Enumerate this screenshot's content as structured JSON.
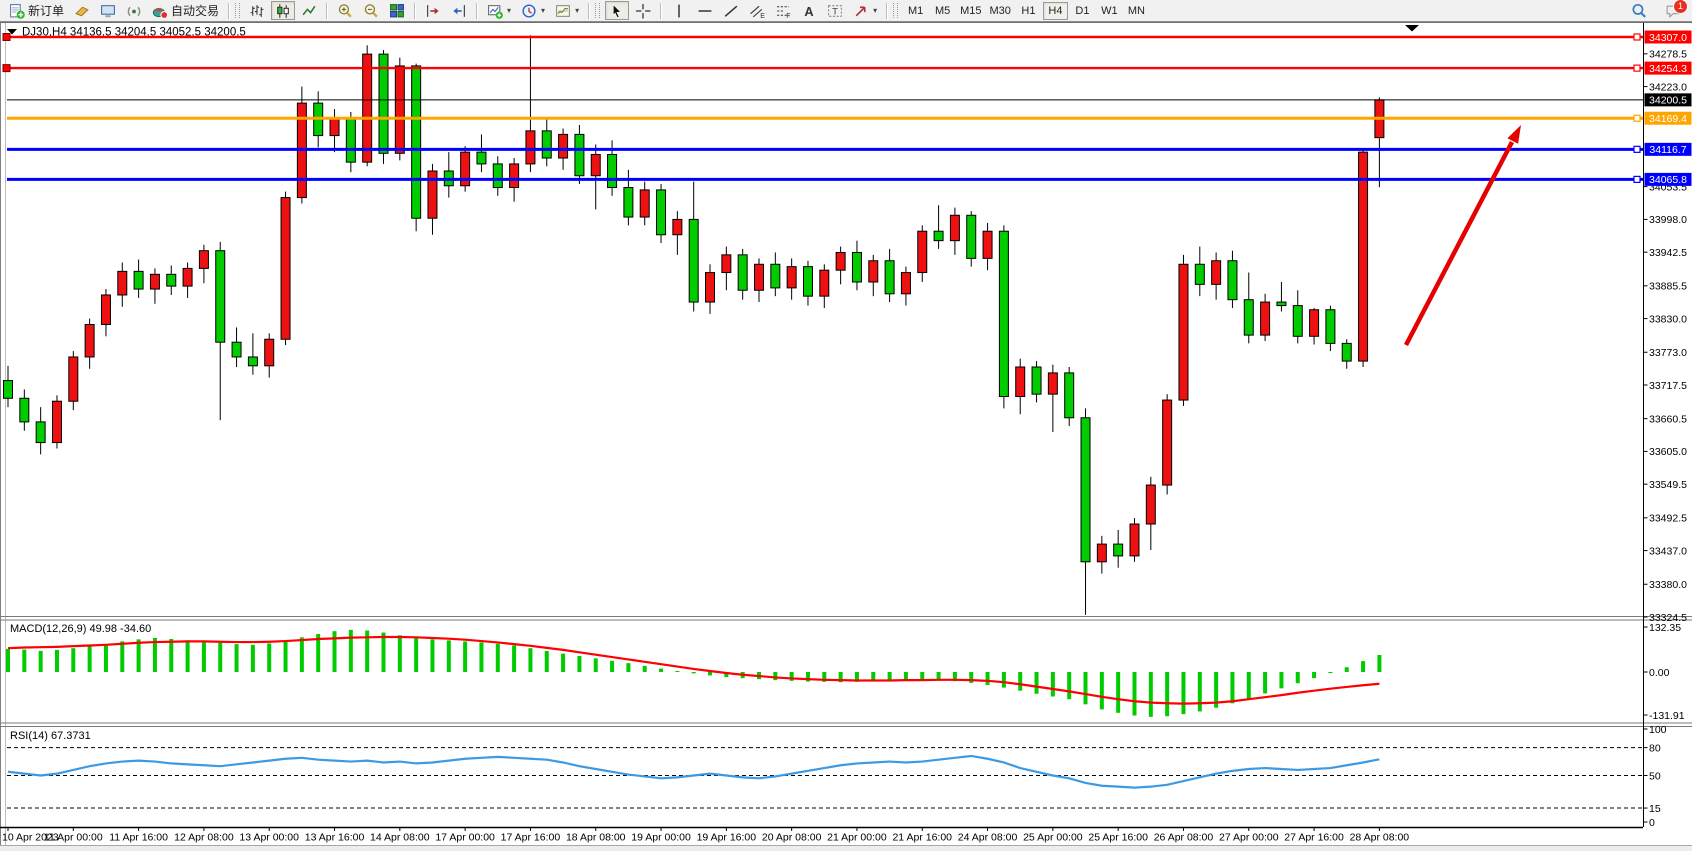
{
  "toolbar": {
    "new_order_label": "新订单",
    "auto_trading_label": "自动交易",
    "notification_badge": "1",
    "groups": [
      {
        "items": [
          {
            "name": "new-order-button",
            "icon": "new-order-icon",
            "label": "新订单"
          },
          {
            "name": "profiles-button",
            "icon": "profile-icon"
          },
          {
            "name": "terminal-button",
            "icon": "terminal-icon"
          },
          {
            "name": "signals-button",
            "icon": "signal-icon"
          },
          {
            "name": "auto-trading-button",
            "icon": "auto-trading-icon",
            "label": "自动交易"
          }
        ]
      },
      {
        "grip": true,
        "items": [
          {
            "name": "bar-chart-button",
            "icon": "bars-chart-icon"
          },
          {
            "name": "candlestick-chart-button",
            "icon": "candle-chart-icon",
            "active": true
          },
          {
            "name": "line-chart-button",
            "icon": "line-chart-icon"
          }
        ]
      },
      {
        "items": [
          {
            "name": "zoom-in-button",
            "icon": "zoom-in-icon"
          },
          {
            "name": "zoom-out-button",
            "icon": "zoom-out-icon"
          },
          {
            "name": "tile-windows-button",
            "icon": "tile-windows-icon"
          }
        ]
      },
      {
        "items": [
          {
            "name": "auto-scroll-button",
            "icon": "auto-scroll-icon"
          },
          {
            "name": "chart-shift-button",
            "icon": "chart-shift-icon"
          }
        ]
      },
      {
        "items": [
          {
            "name": "new-chart-button",
            "icon": "new-chart-icon",
            "caret": true
          },
          {
            "name": "period-button",
            "icon": "clock-icon",
            "caret": true
          },
          {
            "name": "template-button",
            "icon": "template-icon",
            "caret": true
          }
        ]
      },
      {
        "grip": true,
        "items": [
          {
            "name": "cursor-button",
            "icon": "cursor-icon",
            "active": true
          },
          {
            "name": "crosshair-button",
            "icon": "crosshair-icon"
          }
        ]
      },
      {
        "items": [
          {
            "name": "vertical-line-button",
            "icon": "vertical-line-icon"
          },
          {
            "name": "horizontal-line-button",
            "icon": "horizontal-line-icon"
          },
          {
            "name": "trendline-button",
            "icon": "trendline-icon"
          },
          {
            "name": "channel-button",
            "icon": "channel-icon"
          },
          {
            "name": "fibonacci-button",
            "icon": "fibonacci-icon"
          },
          {
            "name": "text-button",
            "icon": "text-icon"
          },
          {
            "name": "text-label-button",
            "icon": "text-label-icon"
          },
          {
            "name": "arrows-button",
            "icon": "arrow-shapes-icon",
            "caret": true
          }
        ]
      },
      {
        "grip": true,
        "type": "timeframes",
        "items": [
          {
            "name": "timeframe-M1",
            "label": "M1"
          },
          {
            "name": "timeframe-M5",
            "label": "M5"
          },
          {
            "name": "timeframe-M15",
            "label": "M15"
          },
          {
            "name": "timeframe-M30",
            "label": "M30"
          },
          {
            "name": "timeframe-H1",
            "label": "H1"
          },
          {
            "name": "timeframe-H4",
            "label": "H4",
            "active": true
          },
          {
            "name": "timeframe-D1",
            "label": "D1"
          },
          {
            "name": "timeframe-W1",
            "label": "W1"
          },
          {
            "name": "timeframe-MN",
            "label": "MN"
          }
        ]
      }
    ],
    "right_items": [
      {
        "name": "search-button",
        "icon": "search-icon"
      },
      {
        "name": "notifications-button",
        "icon": "chat-icon",
        "badge": "1"
      }
    ]
  },
  "chart": {
    "title_symbol": "DJ30,H4",
    "title_ohlc": "34136.5 34204.5 34052.5 34200.5"
  },
  "chart_data": [
    {
      "type": "candlestick",
      "symbol": "DJ30",
      "timeframe": "H4",
      "title": "DJ30,H4 34136.5 34204.5 34052.5 34200.5",
      "up_color": "#ee1111",
      "down_color": "#00cc00",
      "current_price": 34200.5,
      "ylim": [
        33324.5,
        34307.0
      ],
      "y_ticks": [
        34278.5,
        34223.0,
        34053.5,
        33998.0,
        33942.5,
        33885.5,
        33830.0,
        33773.0,
        33717.5,
        33660.5,
        33605.0,
        33549.5,
        33492.5,
        33437.0,
        33380.0,
        33324.5
      ],
      "price_lines": [
        {
          "label": "34307.0",
          "price": 34307.0,
          "color": "#ff0000",
          "width": 2.4,
          "left_handle": true
        },
        {
          "label": "34254.3",
          "price": 34254.3,
          "color": "#ff0000",
          "width": 2.4,
          "left_handle": true
        },
        {
          "label": "34200.5",
          "price": 34200.5,
          "color": "#000000",
          "width": 1,
          "current": true
        },
        {
          "label": "34169.4",
          "price": 34169.4,
          "color": "#ffa500",
          "width": 3
        },
        {
          "label": "34116.7",
          "price": 34116.7,
          "color": "#0000ff",
          "width": 3
        },
        {
          "label": "34065.8",
          "price": 34065.8,
          "color": "#0000ff",
          "width": 3
        }
      ],
      "x_labels": [
        "10 Apr 2023",
        "11 Apr 00:00",
        "11 Apr 16:00",
        "12 Apr 08:00",
        "13 Apr 00:00",
        "13 Apr 16:00",
        "14 Apr 08:00",
        "17 Apr 00:00",
        "17 Apr 16:00",
        "18 Apr 08:00",
        "19 Apr 00:00",
        "19 Apr 16:00",
        "20 Apr 08:00",
        "21 Apr 00:00",
        "21 Apr 16:00",
        "24 Apr 08:00",
        "25 Apr 00:00",
        "25 Apr 16:00",
        "26 Apr 08:00",
        "27 Apr 00:00",
        "27 Apr 16:00",
        "28 Apr 08:00"
      ],
      "candles_per_label": 4,
      "candles": [
        [
          33725,
          33750,
          33680,
          33695
        ],
        [
          33695,
          33710,
          33640,
          33655
        ],
        [
          33655,
          33680,
          33600,
          33620
        ],
        [
          33620,
          33700,
          33610,
          33690
        ],
        [
          33690,
          33775,
          33675,
          33765
        ],
        [
          33765,
          33830,
          33745,
          33820
        ],
        [
          33820,
          33880,
          33800,
          33870
        ],
        [
          33870,
          33925,
          33850,
          33910
        ],
        [
          33910,
          33930,
          33865,
          33880
        ],
        [
          33880,
          33915,
          33855,
          33905
        ],
        [
          33905,
          33920,
          33870,
          33885
        ],
        [
          33885,
          33925,
          33865,
          33915
        ],
        [
          33915,
          33955,
          33890,
          33945
        ],
        [
          33945,
          33960,
          33658,
          33790
        ],
        [
          33790,
          33815,
          33748,
          33765
        ],
        [
          33765,
          33805,
          33735,
          33750
        ],
        [
          33750,
          33805,
          33730,
          33795
        ],
        [
          33795,
          34045,
          33785,
          34035
        ],
        [
          34035,
          34223,
          34025,
          34195
        ],
        [
          34195,
          34215,
          34120,
          34140
        ],
        [
          34140,
          34185,
          34112,
          34170
        ],
        [
          34170,
          34180,
          34078,
          34095
        ],
        [
          34095,
          34293,
          34088,
          34278
        ],
        [
          34278,
          34285,
          34092,
          34110
        ],
        [
          34110,
          34272,
          34098,
          34258
        ],
        [
          34258,
          34262,
          33978,
          34000
        ],
        [
          34000,
          34092,
          33972,
          34080
        ],
        [
          34080,
          34112,
          34035,
          34055
        ],
        [
          34055,
          34122,
          34045,
          34112
        ],
        [
          34112,
          34142,
          34078,
          34092
        ],
        [
          34092,
          34105,
          34038,
          34052
        ],
        [
          34052,
          34102,
          34028,
          34092
        ],
        [
          34092,
          34310,
          34078,
          34148
        ],
        [
          34148,
          34168,
          34088,
          34102
        ],
        [
          34102,
          34152,
          34082,
          34142
        ],
        [
          34142,
          34158,
          34058,
          34072
        ],
        [
          34072,
          34125,
          34015,
          34108
        ],
        [
          34108,
          34132,
          34038,
          34052
        ],
        [
          34052,
          34082,
          33988,
          34002
        ],
        [
          34002,
          34062,
          33988,
          34048
        ],
        [
          34048,
          34058,
          33958,
          33972
        ],
        [
          33972,
          34012,
          33938,
          33998
        ],
        [
          33998,
          34062,
          33842,
          33858
        ],
        [
          33858,
          33922,
          33838,
          33908
        ],
        [
          33908,
          33952,
          33878,
          33938
        ],
        [
          33938,
          33948,
          33862,
          33878
        ],
        [
          33878,
          33932,
          33858,
          33922
        ],
        [
          33922,
          33942,
          33868,
          33882
        ],
        [
          33882,
          33932,
          33862,
          33918
        ],
        [
          33918,
          33928,
          33852,
          33868
        ],
        [
          33868,
          33922,
          33848,
          33912
        ],
        [
          33912,
          33952,
          33888,
          33942
        ],
        [
          33942,
          33962,
          33878,
          33892
        ],
        [
          33892,
          33938,
          33868,
          33928
        ],
        [
          33928,
          33948,
          33858,
          33872
        ],
        [
          33872,
          33918,
          33852,
          33908
        ],
        [
          33908,
          33988,
          33892,
          33978
        ],
        [
          33978,
          34022,
          33948,
          33962
        ],
        [
          33962,
          34018,
          33938,
          34005
        ],
        [
          34005,
          34012,
          33918,
          33932
        ],
        [
          33932,
          33992,
          33912,
          33978
        ],
        [
          33978,
          33988,
          33678,
          33698
        ],
        [
          33698,
          33762,
          33668,
          33748
        ],
        [
          33748,
          33758,
          33688,
          33702
        ],
        [
          33702,
          33752,
          33638,
          33738
        ],
        [
          33738,
          33748,
          33648,
          33662
        ],
        [
          33662,
          33678,
          33328,
          33418
        ],
        [
          33418,
          33462,
          33398,
          33448
        ],
        [
          33448,
          33472,
          33408,
          33428
        ],
        [
          33428,
          33492,
          33418,
          33482
        ],
        [
          33482,
          33562,
          33438,
          33548
        ],
        [
          33548,
          33702,
          33532,
          33692
        ],
        [
          33692,
          33938,
          33682,
          33922
        ],
        [
          33922,
          33952,
          33868,
          33888
        ],
        [
          33888,
          33942,
          33862,
          33928
        ],
        [
          33928,
          33945,
          33848,
          33862
        ],
        [
          33862,
          33908,
          33788,
          33802
        ],
        [
          33802,
          33872,
          33792,
          33858
        ],
        [
          33858,
          33892,
          33842,
          33852
        ],
        [
          33852,
          33878,
          33788,
          33800
        ],
        [
          33800,
          33848,
          33786,
          33845
        ],
        [
          33845,
          33852,
          33775,
          33788
        ],
        [
          33788,
          33795,
          33745,
          33758
        ],
        [
          33758,
          34118,
          33748,
          34112
        ],
        [
          34136.5,
          34204.5,
          34052.5,
          34200.5
        ]
      ],
      "annotations": {
        "trend_arrow": {
          "from": [
            1406,
            345
          ],
          "to": [
            1512,
            142
          ],
          "tip": [
            1521,
            125
          ],
          "color": "#e60000"
        },
        "shift_marker_x": 1412
      }
    },
    {
      "type": "bar",
      "name": "MACD",
      "title": "MACD(12,26,9) 49.98 -34.60",
      "bar_color": "#00cc00",
      "signal_color": "#ff0000",
      "y_ticks": [
        132.35,
        0.0,
        -131.91
      ],
      "values": [
        68,
        66,
        62,
        65,
        70,
        76,
        82,
        90,
        96,
        100,
        97,
        93,
        90,
        86,
        82,
        80,
        84,
        92,
        102,
        112,
        120,
        124,
        122,
        116,
        108,
        100,
        96,
        93,
        90,
        87,
        83,
        78,
        70,
        62,
        54,
        47,
        40,
        33,
        26,
        18,
        10,
        3,
        -4,
        -10,
        -15,
        -18,
        -21,
        -24,
        -26,
        -28,
        -29,
        -30,
        -29,
        -27,
        -25,
        -24,
        -23,
        -24,
        -27,
        -32,
        -38,
        -46,
        -55,
        -64,
        -72,
        -80,
        -95,
        -110,
        -120,
        -128,
        -132,
        -130,
        -124,
        -116,
        -105,
        -92,
        -78,
        -63,
        -48,
        -33,
        -18,
        -3,
        14,
        32,
        49.98
      ],
      "signal": [
        70,
        72,
        73,
        74,
        76,
        78,
        80,
        83,
        86,
        88,
        89,
        90,
        90,
        89,
        88,
        88,
        89,
        91,
        94,
        97,
        99,
        101,
        102,
        103,
        103,
        102,
        100,
        98,
        95,
        91,
        87,
        82,
        77,
        71,
        65,
        58,
        51,
        44,
        37,
        30,
        23,
        16,
        9,
        3,
        -3,
        -8,
        -12,
        -16,
        -19,
        -21,
        -23,
        -24,
        -25,
        -25,
        -25,
        -24,
        -24,
        -23,
        -23,
        -24,
        -26,
        -30,
        -36,
        -43,
        -50,
        -57,
        -65,
        -73,
        -80,
        -86,
        -90,
        -92,
        -93,
        -92,
        -90,
        -86,
        -80,
        -74,
        -68,
        -61,
        -55,
        -49,
        -44,
        -39,
        -34.6
      ]
    },
    {
      "type": "line",
      "name": "RSI",
      "title": "RSI(14) 67.3731",
      "line_color": "#3d9ae2",
      "ylim": [
        0,
        100
      ],
      "y_ticks": [
        100,
        80,
        50,
        15,
        0
      ],
      "dashed_levels": [
        80,
        50,
        15
      ],
      "values": [
        54,
        52,
        50,
        52,
        56,
        60,
        63,
        65,
        66,
        65,
        63,
        62,
        61,
        60,
        62,
        64,
        66,
        68,
        69,
        67,
        66,
        65,
        66,
        64,
        65,
        63,
        64,
        66,
        68,
        69,
        70,
        69,
        68,
        67,
        64,
        60,
        57,
        54,
        51,
        49,
        47,
        48,
        50,
        52,
        50,
        48,
        47,
        49,
        52,
        55,
        58,
        61,
        63,
        64,
        65,
        64,
        65,
        67,
        69,
        71,
        68,
        64,
        58,
        54,
        50,
        47,
        42,
        39,
        38,
        37,
        38,
        40,
        44,
        48,
        52,
        55,
        57,
        58,
        57,
        56,
        57,
        58,
        61,
        64,
        67.37
      ]
    }
  ]
}
